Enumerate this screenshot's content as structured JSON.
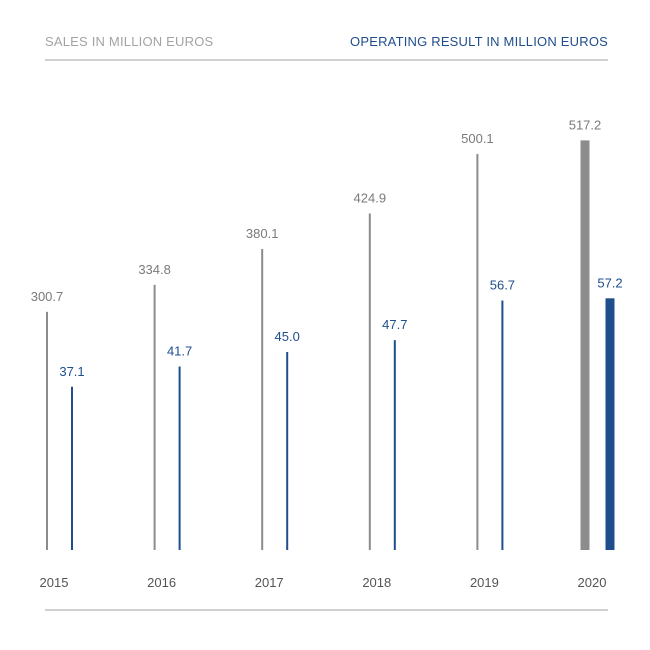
{
  "header": {
    "left_label": "SALES IN MILLION EUROS",
    "right_label": "OPERATING RESULT IN MILLION EUROS"
  },
  "colors": {
    "sales": "#8c8c8c",
    "sales_label": "#7a7a7a",
    "operating": "#1f4e8c",
    "operating_label": "#1f4e8c",
    "year_label": "#555555",
    "rule": "#d0d0d0"
  },
  "chart_data": {
    "type": "bar",
    "categories": [
      "2015",
      "2016",
      "2017",
      "2018",
      "2019",
      "2020"
    ],
    "series": [
      {
        "name": "SALES IN MILLION EUROS",
        "values": [
          300.7,
          334.8,
          380.1,
          424.9,
          500.1,
          517.2
        ],
        "labels": [
          "300.7",
          "334.8",
          "380.1",
          "424.9",
          "500.1",
          "517.2"
        ]
      },
      {
        "name": "OPERATING RESULT IN MILLION EUROS",
        "values": [
          37.1,
          41.7,
          45.0,
          47.7,
          56.7,
          57.2
        ],
        "labels": [
          "37.1",
          "41.7",
          "45.0",
          "47.7",
          "56.7",
          "57.2"
        ]
      }
    ],
    "highlighted_category": "2020",
    "legend": "top"
  }
}
